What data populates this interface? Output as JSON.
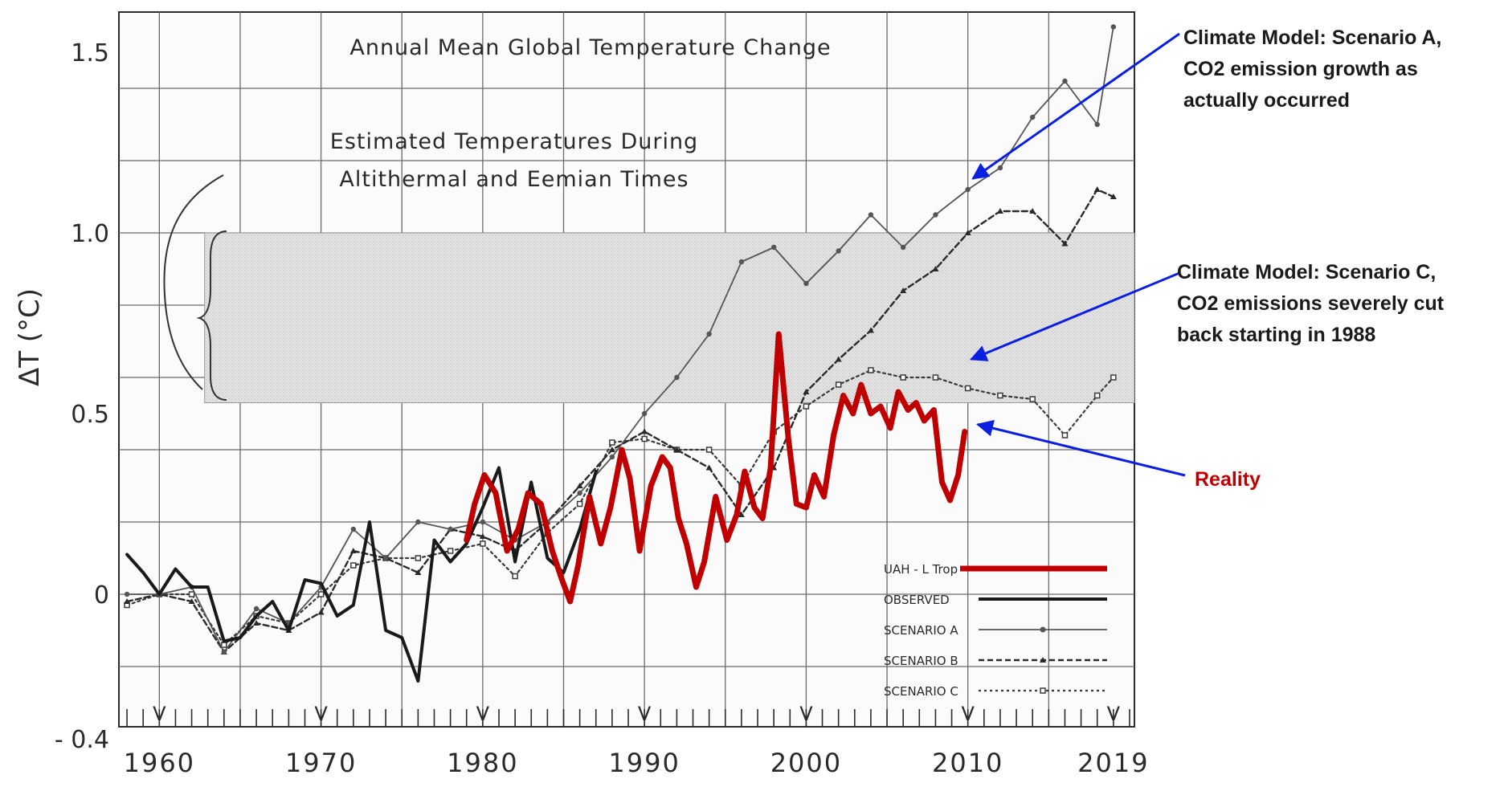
{
  "chart_data": {
    "type": "line",
    "title": "Annual Mean Global Temperature Change",
    "ylabel": "ΔT (°C)",
    "xlabel": "",
    "xlim": [
      1957.5,
      2020.3
    ],
    "ylim": [
      -0.4,
      1.6
    ],
    "y_ticks": [
      {
        "value": 1.5,
        "label": "1.5"
      },
      {
        "value": 1.0,
        "label": "1.0"
      },
      {
        "value": 0.5,
        "label": "0.5"
      },
      {
        "value": 0.0,
        "label": "0"
      },
      {
        "value": -0.4,
        "label": "- 0.4"
      }
    ],
    "x_ticks": [
      {
        "value": 1960,
        "label": "1960"
      },
      {
        "value": 1970,
        "label": "1970"
      },
      {
        "value": 1980,
        "label": "1980"
      },
      {
        "value": 1990,
        "label": "1990"
      },
      {
        "value": 2000,
        "label": "2000"
      },
      {
        "value": 2010,
        "label": "2010"
      },
      {
        "value": 2019,
        "label": "2019"
      }
    ],
    "v_markers": [
      1960,
      1970,
      1980,
      1990,
      2000,
      2010,
      2019
    ],
    "v_marker_label": "V",
    "grid": true,
    "band": {
      "y_low": 0.53,
      "y_high": 1.0,
      "x_start": 1962.8,
      "label_lines": [
        "Estimated Temperatures During",
        "Altithermal and Eemian Times"
      ]
    },
    "legend_position": "bottom-right",
    "series": [
      {
        "name": "OBSERVED",
        "color": "#1a1a1a",
        "style": "observed",
        "x": [
          1958,
          1959,
          1960,
          1961,
          1962,
          1963,
          1964,
          1965,
          1966,
          1967,
          1968,
          1969,
          1970,
          1971,
          1972,
          1973,
          1974,
          1975,
          1976,
          1977,
          1978,
          1979,
          1980,
          1981,
          1982,
          1983,
          1984,
          1985,
          1986,
          1987
        ],
        "y": [
          0.11,
          0.06,
          0.0,
          0.07,
          0.02,
          0.02,
          -0.13,
          -0.12,
          -0.06,
          -0.02,
          -0.1,
          0.04,
          0.03,
          -0.06,
          -0.03,
          0.2,
          -0.1,
          -0.12,
          -0.24,
          0.15,
          0.09,
          0.14,
          0.24,
          0.35,
          0.09,
          0.31,
          0.1,
          0.06,
          0.18,
          0.34
        ]
      },
      {
        "name": "SCENARIO A",
        "color": "#555555",
        "style": "scenario-a",
        "x": [
          1958,
          1960,
          1962,
          1964,
          1966,
          1968,
          1970,
          1972,
          1974,
          1976,
          1978,
          1980,
          1982,
          1984,
          1986,
          1988,
          1990,
          1992,
          1994,
          1996,
          1998,
          2000,
          2002,
          2004,
          2006,
          2008,
          2010,
          2012,
          2014,
          2016,
          2018,
          2019
        ],
        "y": [
          0.0,
          0.0,
          0.02,
          -0.16,
          -0.04,
          -0.08,
          0.02,
          0.18,
          0.1,
          0.2,
          0.18,
          0.2,
          0.15,
          0.2,
          0.28,
          0.38,
          0.5,
          0.6,
          0.72,
          0.92,
          0.96,
          0.86,
          0.95,
          1.05,
          0.96,
          1.05,
          1.12,
          1.18,
          1.32,
          1.42,
          1.3,
          1.57
        ]
      },
      {
        "name": "SCENARIO B",
        "color": "#2a2a2a",
        "style": "scenario-b",
        "x": [
          1958,
          1960,
          1962,
          1964,
          1966,
          1968,
          1970,
          1972,
          1974,
          1976,
          1978,
          1980,
          1982,
          1984,
          1986,
          1988,
          1990,
          1992,
          1994,
          1996,
          1998,
          2000,
          2002,
          2004,
          2006,
          2008,
          2010,
          2012,
          2014,
          2016,
          2018,
          2019
        ],
        "y": [
          -0.02,
          0.0,
          -0.02,
          -0.16,
          -0.08,
          -0.1,
          -0.05,
          0.12,
          0.1,
          0.06,
          0.18,
          0.16,
          0.12,
          0.2,
          0.3,
          0.4,
          0.45,
          0.4,
          0.35,
          0.22,
          0.35,
          0.56,
          0.65,
          0.73,
          0.84,
          0.9,
          1.0,
          1.06,
          1.06,
          0.97,
          1.12,
          1.1
        ]
      },
      {
        "name": "SCENARIO C",
        "color": "#3a3a3a",
        "style": "scenario-c",
        "x": [
          1958,
          1960,
          1962,
          1964,
          1966,
          1968,
          1970,
          1972,
          1974,
          1976,
          1978,
          1980,
          1982,
          1984,
          1986,
          1988,
          1990,
          1992,
          1994,
          1996,
          1998,
          2000,
          2002,
          2004,
          2006,
          2008,
          2010,
          2012,
          2014,
          2016,
          2018,
          2019
        ],
        "y": [
          -0.03,
          0.0,
          0.0,
          -0.14,
          -0.06,
          -0.08,
          0.0,
          0.08,
          0.1,
          0.1,
          0.12,
          0.14,
          0.05,
          0.17,
          0.25,
          0.42,
          0.43,
          0.4,
          0.4,
          0.3,
          0.45,
          0.52,
          0.58,
          0.62,
          0.6,
          0.6,
          0.57,
          0.55,
          0.54,
          0.44,
          0.55,
          0.6
        ]
      },
      {
        "name": "UAH - L Trop",
        "color": "#c00000",
        "style": "reality",
        "x": [
          1979.0,
          1979.5,
          1980.1,
          1980.8,
          1981.5,
          1982.2,
          1982.8,
          1983.6,
          1984.3,
          1984.9,
          1985.4,
          1985.9,
          1986.6,
          1987.3,
          1987.9,
          1988.6,
          1989.1,
          1989.7,
          1990.4,
          1991.1,
          1991.6,
          1992.1,
          1992.6,
          1993.2,
          1993.7,
          1994.4,
          1995.1,
          1995.7,
          1996.2,
          1996.8,
          1997.3,
          1997.8,
          1998.3,
          1998.9,
          1999.4,
          2000.0,
          2000.5,
          2001.1,
          2001.7,
          2002.3,
          2002.9,
          2003.4,
          2004.0,
          2004.6,
          2005.2,
          2005.7,
          2006.3,
          2006.8,
          2007.3,
          2007.9,
          2008.4,
          2008.9,
          2009.4,
          2009.8
        ],
        "y": [
          0.15,
          0.25,
          0.33,
          0.28,
          0.12,
          0.18,
          0.28,
          0.25,
          0.12,
          0.04,
          -0.02,
          0.08,
          0.27,
          0.14,
          0.24,
          0.4,
          0.32,
          0.12,
          0.3,
          0.38,
          0.35,
          0.21,
          0.14,
          0.02,
          0.09,
          0.27,
          0.15,
          0.22,
          0.34,
          0.24,
          0.21,
          0.35,
          0.72,
          0.43,
          0.25,
          0.24,
          0.33,
          0.27,
          0.44,
          0.55,
          0.5,
          0.58,
          0.5,
          0.52,
          0.46,
          0.56,
          0.51,
          0.53,
          0.48,
          0.51,
          0.31,
          0.26,
          0.33,
          0.45
        ]
      }
    ],
    "legend": [
      {
        "label": "UAH - L Trop",
        "style": "reality"
      },
      {
        "label": "OBSERVED",
        "style": "observed"
      },
      {
        "label": "SCENARIO A",
        "style": "scenario-a"
      },
      {
        "label": "SCENARIO B",
        "style": "scenario-b"
      },
      {
        "label": "SCENARIO C",
        "style": "scenario-c"
      }
    ],
    "annotations": [
      {
        "lines": [
          "Climate Model: Scenario A,",
          "CO2 emission growth as",
          "actually occurred"
        ],
        "color": "#1a1a1a",
        "arrow_to": {
          "x": 2010.3,
          "y": 1.15
        },
        "arrow_color": "#0b1fe0"
      },
      {
        "lines": [
          "Climate Model: Scenario C,",
          "CO2 emissions severely cut",
          "back starting in 1988"
        ],
        "color": "#1a1a1a",
        "arrow_to": {
          "x": 2010.2,
          "y": 0.65
        },
        "arrow_color": "#0b1fe0"
      },
      {
        "lines": [
          "Reality"
        ],
        "color": "#c00000",
        "arrow_to": {
          "x": 2010.6,
          "y": 0.47
        },
        "arrow_color": "#0b1fe0"
      }
    ]
  }
}
